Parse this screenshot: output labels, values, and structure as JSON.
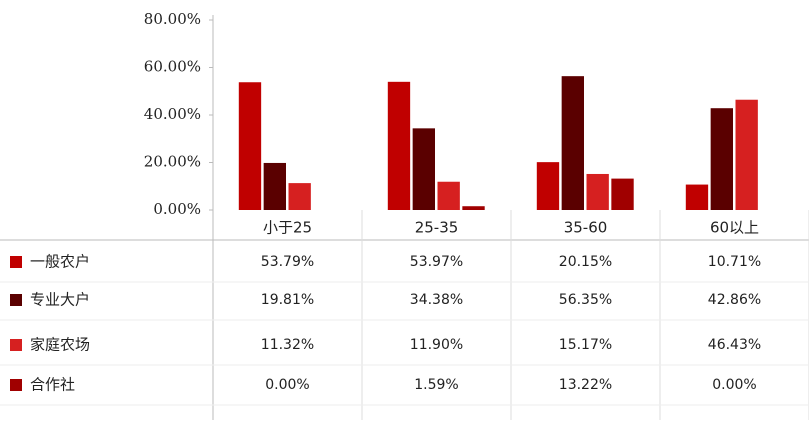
{
  "chart_data": {
    "type": "bar",
    "categories": [
      "小于25",
      "25-35",
      "35-60",
      "60以上"
    ],
    "ylim": [
      0,
      80
    ],
    "yticks": [
      {
        "value": 0,
        "label": "0.00%"
      },
      {
        "value": 20,
        "label": "20.00%"
      },
      {
        "value": 40,
        "label": "40.00%"
      },
      {
        "value": 60,
        "label": "60.00%"
      },
      {
        "value": 80,
        "label": "80.00%"
      }
    ],
    "series": [
      {
        "name": "一般农户",
        "color": "#c00000",
        "values": [
          53.79,
          53.97,
          20.15,
          10.71
        ],
        "value_labels": [
          "53.79%",
          "53.97%",
          "20.15%",
          "10.71%"
        ]
      },
      {
        "name": "专业大户",
        "color": "#5a0000",
        "values": [
          19.81,
          34.38,
          56.35,
          42.86
        ],
        "value_labels": [
          "19.81%",
          "34.38%",
          "56.35%",
          "42.86%"
        ]
      },
      {
        "name": "家庭农场",
        "color": "#d62020",
        "values": [
          11.32,
          11.9,
          15.17,
          46.43
        ],
        "value_labels": [
          "11.32%",
          "11.90%",
          "15.17%",
          "46.43%"
        ]
      },
      {
        "name": "合作社",
        "color": "#a00000",
        "values": [
          0,
          1.59,
          13.22,
          0
        ],
        "value_labels": [
          "0.00%",
          "1.59%",
          "13.22%",
          "0.00%"
        ]
      }
    ]
  }
}
